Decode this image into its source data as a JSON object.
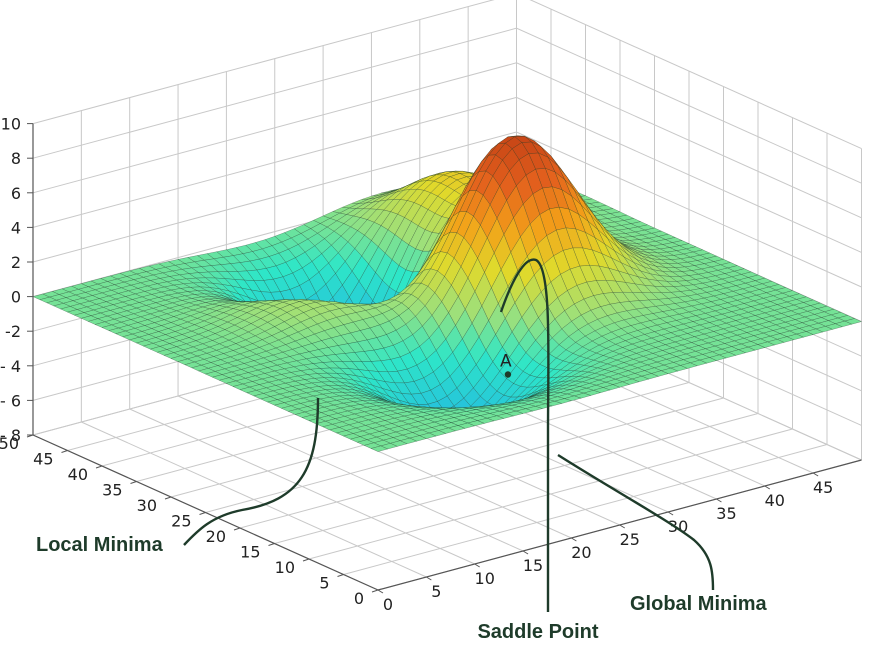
{
  "chart_data": {
    "type": "surface",
    "x_ticks": [
      0,
      5,
      10,
      15,
      20,
      25,
      30,
      35,
      40,
      45
    ],
    "y_ticks": [
      0,
      5,
      10,
      15,
      20,
      25,
      30,
      35,
      40,
      45,
      50
    ],
    "z_ticks": [
      10,
      8,
      6,
      4,
      2,
      0,
      -2,
      -4,
      -6,
      -8
    ],
    "z_tick_labels": [
      "10",
      "8",
      "6",
      "4",
      "2",
      "0",
      "-2",
      "- 4",
      "- 6",
      "- 8"
    ],
    "xlim": [
      0,
      50
    ],
    "ylim": [
      0,
      50
    ],
    "zlim": [
      -8,
      10
    ],
    "grid": true,
    "colormap": [
      "#1565c0",
      "#1e88e5",
      "#26c6da",
      "#2ee6c8",
      "#9ee07a",
      "#e0d92b",
      "#f3a019",
      "#e3601d",
      "#c64416"
    ],
    "peaks": [
      {
        "x": 32,
        "y": 25,
        "z": 9.0
      },
      {
        "x": 36,
        "y": 40,
        "z": 3.5
      },
      {
        "x": 18,
        "y": 33,
        "z": 2.8
      },
      {
        "x": 19,
        "y": 15,
        "z": -4.0
      },
      {
        "x": 23,
        "y": 37,
        "z": -7.5
      }
    ],
    "point_A": {
      "label": "A",
      "x": 22,
      "y": 12,
      "z": -1.0
    },
    "annotations": {
      "local_minima": "Local Minima",
      "saddle_point": "Saddle Point",
      "global_minima": "Global Minima"
    }
  },
  "colors": {
    "axes": "#555555",
    "grid": "#c8c8c8",
    "mesh_line": "#1f3a28",
    "annotation_line": "#1e3b2a",
    "annotation_text": "#1e3b2a"
  }
}
